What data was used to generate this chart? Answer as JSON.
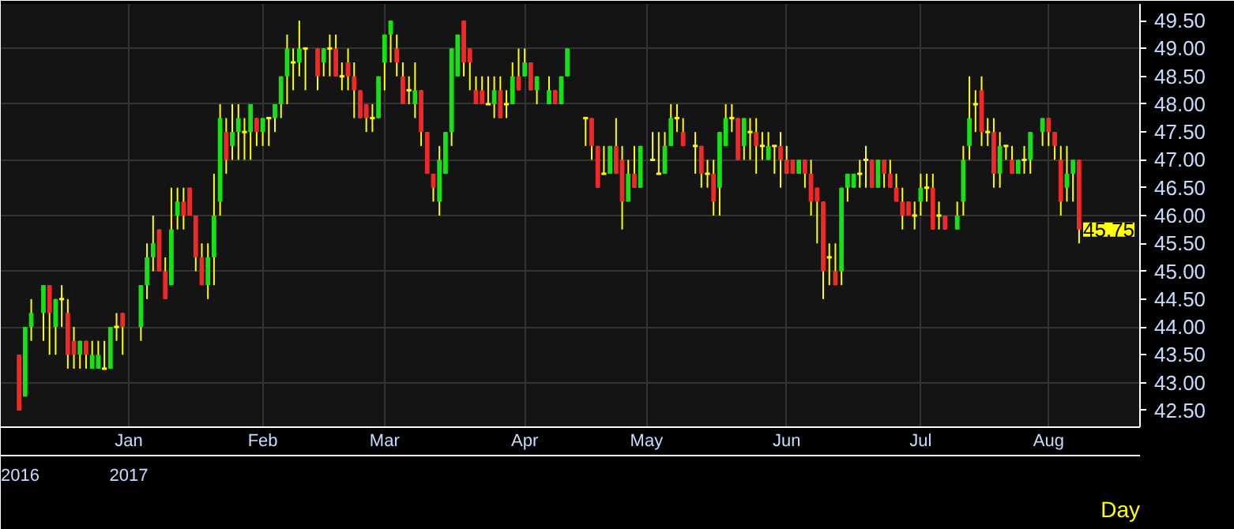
{
  "chart_data": {
    "type": "candlestick",
    "categories": [
      null,
      null,
      null,
      null,
      null,
      null,
      null,
      null,
      null,
      null,
      null,
      null,
      null,
      null,
      null,
      null,
      null,
      null,
      "Jan",
      null,
      null,
      null,
      null,
      null,
      null,
      null,
      null,
      null,
      null,
      null,
      null,
      null,
      null,
      null,
      null,
      null,
      null,
      null,
      null,
      null,
      "Feb",
      null,
      null,
      null,
      null,
      null,
      null,
      null,
      null,
      null,
      null,
      null,
      null,
      null,
      null,
      null,
      null,
      null,
      null,
      null,
      "Mar",
      null,
      null,
      null,
      null,
      null,
      null,
      null,
      null,
      null,
      null,
      null,
      null,
      null,
      null,
      null,
      null,
      null,
      null,
      null,
      null,
      null,
      null,
      "Apr",
      null,
      null,
      null,
      null,
      null,
      null,
      null,
      null,
      null,
      null,
      null,
      null,
      null,
      null,
      null,
      null,
      null,
      null,
      null,
      "May",
      null,
      null,
      null,
      null,
      null,
      null,
      null,
      null,
      null,
      null,
      null,
      null,
      null,
      null,
      null,
      null,
      null,
      null,
      null,
      null,
      null,
      null,
      "Jun",
      null,
      null,
      null,
      null,
      null,
      null,
      null,
      null,
      null,
      null,
      null,
      null,
      null,
      null,
      null,
      null,
      null,
      null,
      null,
      null,
      null,
      "Jul",
      null,
      null,
      null,
      null,
      null,
      null,
      null,
      null,
      null,
      null,
      null,
      null,
      null,
      null,
      null,
      null,
      null,
      null,
      null,
      null,
      "Aug",
      null,
      null,
      null,
      null,
      null
    ],
    "ohlc": [
      [
        43.5,
        43.5,
        42.5,
        42.5
      ],
      [
        42.75,
        44,
        42.75,
        44
      ],
      [
        44,
        44.5,
        43.75,
        44.25
      ],
      null,
      [
        44.25,
        44.75,
        43.75,
        44.75
      ],
      [
        44.75,
        44.75,
        43.5,
        44.25
      ],
      [
        44,
        44.5,
        43.5,
        44.5
      ],
      [
        44.5,
        44.75,
        44,
        44.5
      ],
      [
        44.25,
        44.5,
        43.25,
        43.5
      ],
      [
        43.75,
        44,
        43.25,
        43.5
      ],
      [
        43.5,
        43.75,
        43.25,
        43.75
      ],
      [
        43.75,
        43.75,
        43.25,
        43.5
      ],
      [
        43.25,
        43.75,
        43.25,
        43.5
      ],
      [
        43.25,
        43.75,
        43.25,
        43.5
      ],
      [
        43.25,
        43.75,
        43.25,
        43.25
      ],
      [
        43.25,
        44,
        43.25,
        44
      ],
      [
        44,
        44.25,
        43.75,
        44
      ],
      [
        44.25,
        44.25,
        43.5,
        44
      ],
      null,
      null,
      [
        44,
        44.75,
        43.75,
        44.75
      ],
      [
        44.75,
        45.5,
        44.5,
        45.25
      ],
      [
        45.25,
        46,
        45,
        45.5
      ],
      [
        45.75,
        45.75,
        45,
        45
      ],
      [
        45,
        45.25,
        44.5,
        44.5
      ],
      [
        44.75,
        46.5,
        44.75,
        45.75
      ],
      [
        46,
        46.5,
        45.75,
        46.25
      ],
      [
        46.25,
        46.5,
        45.75,
        46
      ],
      [
        46.5,
        46.5,
        46,
        46
      ],
      [
        46,
        46,
        45,
        45.25
      ],
      [
        45.25,
        45.5,
        44.75,
        44.75
      ],
      [
        44.75,
        45.5,
        44.5,
        45.25
      ],
      [
        45.25,
        46.75,
        44.75,
        46
      ],
      [
        46.25,
        48,
        46,
        47.75
      ],
      [
        47.5,
        47.75,
        46.75,
        47
      ],
      [
        47.25,
        48,
        47,
        47.5
      ],
      [
        47.5,
        48,
        47,
        47.75
      ],
      [
        47.5,
        47.75,
        47,
        47.5
      ],
      [
        47.5,
        48,
        47,
        48
      ],
      [
        47.75,
        47.75,
        47.25,
        47.5
      ],
      [
        47.5,
        47.75,
        47.25,
        47.75
      ],
      [
        47.75,
        47.75,
        47.25,
        47.75
      ],
      [
        47.75,
        48,
        47.5,
        48
      ],
      [
        48,
        48.5,
        47.75,
        48.5
      ],
      [
        48.5,
        49.25,
        48,
        49
      ],
      [
        48.75,
        49,
        48.25,
        48.75
      ],
      [
        48.75,
        49.5,
        48.5,
        49
      ],
      [
        49,
        49,
        48.25,
        49
      ],
      null,
      [
        49,
        49,
        48.25,
        48.5
      ],
      [
        48.75,
        49,
        48.5,
        49
      ],
      [
        49,
        49.25,
        48.5,
        49
      ],
      [
        49,
        49.25,
        48.5,
        48.5
      ],
      [
        48.5,
        48.75,
        48.25,
        48.5
      ],
      [
        48.75,
        49,
        48.25,
        48.5
      ],
      [
        48.5,
        48.75,
        47.75,
        48.25
      ],
      [
        48.25,
        48.25,
        47.75,
        47.75
      ],
      [
        48,
        48,
        47.5,
        47.75
      ],
      [
        47.75,
        48,
        47.5,
        47.75
      ],
      [
        47.75,
        48.5,
        47.75,
        48.5
      ],
      [
        48.75,
        49.25,
        48.25,
        49.25
      ],
      [
        49.25,
        49.5,
        48.75,
        49.5
      ],
      [
        49,
        49.25,
        48.5,
        48.75
      ],
      [
        48.5,
        48.75,
        48,
        48
      ],
      [
        48.25,
        48.5,
        48,
        48.25
      ],
      [
        48,
        48.75,
        47.75,
        48.25
      ],
      [
        48.25,
        48.25,
        47.25,
        47.5
      ],
      [
        47.5,
        47.5,
        46.75,
        46.75
      ],
      [
        46.75,
        46.75,
        46.25,
        46.5
      ],
      [
        46.25,
        47.25,
        46,
        47
      ],
      [
        46.75,
        47.5,
        46.75,
        47.5
      ],
      [
        47.5,
        49,
        47.25,
        49
      ],
      [
        48.5,
        49.25,
        48.5,
        49.25
      ],
      [
        49.5,
        49.5,
        48.5,
        48.75
      ],
      [
        49,
        49,
        48.25,
        48.75
      ],
      [
        48.25,
        48.5,
        48,
        48
      ],
      [
        48.25,
        48.5,
        48,
        48
      ],
      [
        48,
        48.5,
        48,
        48
      ],
      [
        48,
        48.5,
        47.75,
        48.25
      ],
      [
        48.25,
        48.5,
        47.75,
        47.75
      ],
      [
        48,
        48.25,
        47.75,
        48
      ],
      [
        48,
        48.75,
        48,
        48.5
      ],
      [
        48.5,
        49,
        48.25,
        48.25
      ],
      [
        48.5,
        49,
        48.5,
        48.75
      ],
      [
        48.75,
        48.75,
        48.25,
        48.25
      ],
      [
        48.25,
        48.5,
        48,
        48.5
      ],
      null,
      [
        48,
        48.5,
        48,
        48.25
      ],
      [
        48.25,
        48.25,
        48,
        48
      ],
      [
        48,
        48.5,
        48,
        48.5
      ],
      [
        48.5,
        49,
        48.5,
        49
      ],
      null,
      null,
      [
        47.75,
        47.75,
        47.25,
        47.75
      ],
      [
        47.75,
        47.75,
        47,
        47.25
      ],
      [
        47.25,
        47.25,
        46.5,
        46.5
      ],
      [
        46.75,
        47.25,
        46.75,
        46.75
      ],
      [
        46.75,
        47.25,
        46.75,
        47.25
      ],
      [
        47.25,
        47.75,
        46.75,
        46.75
      ],
      [
        47,
        47.25,
        45.75,
        46.25
      ],
      [
        46.25,
        47,
        46.25,
        46.75
      ],
      [
        46.75,
        47.25,
        46.5,
        46.5
      ],
      [
        46.5,
        47.25,
        46.5,
        47.25
      ],
      null,
      [
        47,
        47.5,
        47,
        47
      ],
      [
        46.75,
        47.5,
        46.75,
        46.75
      ],
      [
        46.75,
        47.5,
        46.75,
        47.25
      ],
      [
        47.25,
        48,
        47.25,
        47.75
      ],
      [
        47.75,
        48,
        47.5,
        47.75
      ],
      [
        47.5,
        47.75,
        47.25,
        47.25
      ],
      null,
      [
        47.25,
        47.5,
        46.75,
        47.25
      ],
      [
        47.25,
        47.25,
        46.5,
        46.75
      ],
      [
        46.75,
        47,
        46.5,
        46.75
      ],
      [
        46.75,
        47,
        46,
        46.25
      ],
      [
        46.5,
        47.5,
        46,
        47.5
      ],
      [
        47.25,
        48,
        47.25,
        47.75
      ],
      [
        47.75,
        48,
        47.5,
        47.75
      ],
      [
        47.75,
        47.75,
        47,
        47
      ],
      [
        47.25,
        47.75,
        47,
        47.75
      ],
      [
        47.5,
        47.75,
        47,
        47.5
      ],
      [
        47.5,
        47.75,
        46.75,
        47.25
      ],
      [
        47.25,
        47.5,
        47,
        47.25
      ],
      [
        47,
        47.5,
        47,
        47.25
      ],
      [
        47.25,
        47.25,
        46.75,
        47.25
      ],
      [
        47.25,
        47.5,
        46.5,
        47
      ],
      [
        47,
        47.25,
        46.75,
        46.75
      ],
      [
        47,
        47,
        46.75,
        46.75
      ],
      [
        46.75,
        47,
        46.75,
        47
      ],
      [
        47,
        47,
        46.5,
        46.75
      ],
      [
        46.75,
        47,
        46,
        46.25
      ],
      [
        46.5,
        46.5,
        45.5,
        46.25
      ],
      [
        46.25,
        46.25,
        44.5,
        45
      ],
      [
        45.25,
        45.5,
        44.75,
        45.25
      ],
      [
        45,
        45.5,
        44.75,
        44.75
      ],
      [
        45,
        46.5,
        44.75,
        46.5
      ],
      [
        46.5,
        46.75,
        46.25,
        46.75
      ],
      [
        46.5,
        46.75,
        46.5,
        46.75
      ],
      [
        46.75,
        47,
        46.5,
        46.75
      ],
      [
        47,
        47.25,
        46.5,
        47
      ],
      [
        47,
        47,
        46.5,
        46.5
      ],
      [
        46.5,
        47,
        46.5,
        47
      ],
      [
        47,
        47,
        46.5,
        46.75
      ],
      [
        46.75,
        47,
        46.5,
        46.5
      ],
      [
        46.5,
        46.75,
        46.25,
        46.25
      ],
      [
        46.25,
        46.5,
        45.75,
        46
      ],
      [
        46.25,
        46.25,
        46,
        46
      ],
      [
        46,
        46.25,
        45.75,
        46
      ],
      [
        46.25,
        46.75,
        46,
        46.5
      ],
      [
        46.5,
        46.75,
        46.25,
        46.5
      ],
      [
        46.5,
        46.75,
        45.75,
        45.75
      ],
      [
        46,
        46.25,
        45.75,
        46
      ],
      [
        46,
        46,
        45.75,
        45.75
      ],
      null,
      [
        45.75,
        46.25,
        45.75,
        46
      ],
      [
        46.25,
        47.25,
        46,
        47
      ],
      [
        47.25,
        48.5,
        47,
        47.75
      ],
      [
        48,
        48.25,
        47.5,
        48
      ],
      [
        48.25,
        48.5,
        47.25,
        47.5
      ],
      [
        47.5,
        47.75,
        47.25,
        47.5
      ],
      [
        47.5,
        47.75,
        46.5,
        46.75
      ],
      [
        46.75,
        47.5,
        46.5,
        47.25
      ],
      [
        47.25,
        47.25,
        47,
        47.25
      ],
      [
        47,
        47.25,
        46.75,
        46.75
      ],
      [
        46.75,
        47,
        46.75,
        47
      ],
      [
        47,
        47.25,
        46.75,
        47
      ],
      [
        47,
        47.5,
        46.75,
        47.5
      ],
      null,
      [
        47.5,
        47.75,
        47.25,
        47.75
      ],
      [
        47.75,
        47.75,
        47.25,
        47.5
      ],
      [
        47.5,
        47.5,
        47,
        47.25
      ],
      [
        47,
        47.25,
        46,
        46.25
      ],
      [
        46.5,
        47.25,
        46.25,
        46.75
      ],
      [
        46.75,
        47,
        46.25,
        47
      ],
      [
        47,
        47,
        45.5,
        45.75
      ]
    ],
    "ylim": [
      42.2,
      49.8
    ],
    "yticks": [
      {
        "value": 42.5,
        "label": "42.50"
      },
      {
        "value": 43,
        "label": "43.00"
      },
      {
        "value": 43.5,
        "label": "43.50"
      },
      {
        "value": 44,
        "label": "44.00"
      },
      {
        "value": 44.5,
        "label": "44.50"
      },
      {
        "value": 45,
        "label": "45.00"
      },
      {
        "value": 45.5,
        "label": "45.50"
      },
      {
        "value": 46,
        "label": "46.00"
      },
      {
        "value": 46.5,
        "label": "46.50"
      },
      {
        "value": 47,
        "label": "47.00"
      },
      {
        "value": 47.5,
        "label": "47.50"
      },
      {
        "value": 48,
        "label": "48.00"
      },
      {
        "value": 48.5,
        "label": "48.50"
      },
      {
        "value": 49,
        "label": "49.00"
      },
      {
        "value": 49.5,
        "label": "49.50"
      }
    ],
    "grid": true,
    "annotations": [
      "2016",
      "2017",
      "Day",
      "45.75"
    ]
  }
}
